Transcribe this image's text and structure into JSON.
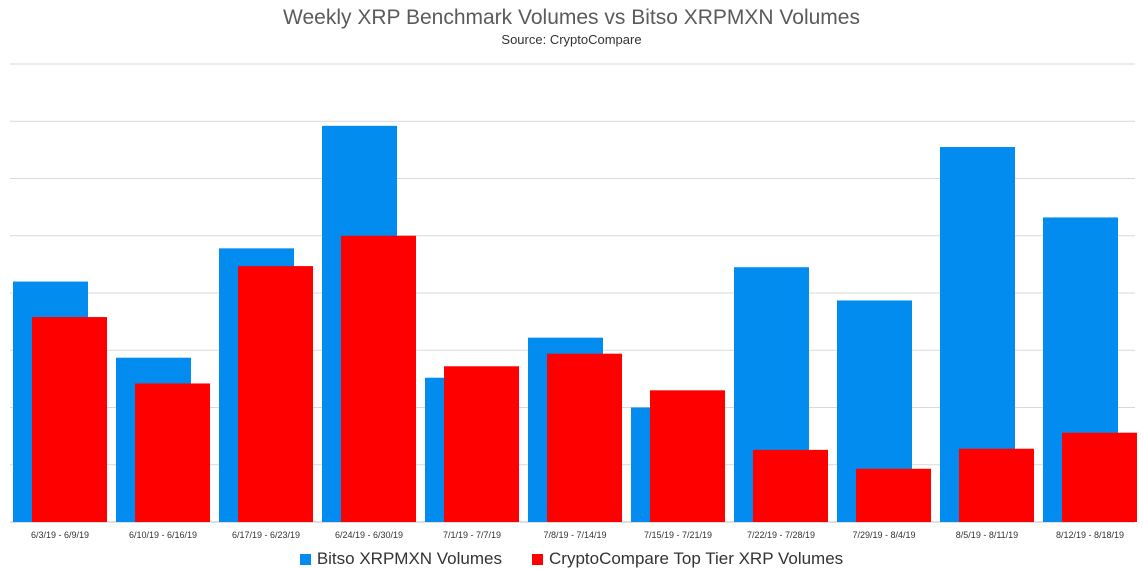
{
  "chart_data": {
    "type": "bar",
    "title": "Weekly XRP Benchmark Volumes vs Bitso XRPMXN Volumes",
    "subtitle": "Source: CryptoCompare",
    "xlabel": "",
    "ylabel": "",
    "categories": [
      "6/3/19 - 6/9/19",
      "6/10/19 - 6/16/19",
      "6/17/19 - 6/23/19",
      "6/24/19 - 6/30/19",
      "7/1/19 - 7/7/19",
      "7/8/19 - 7/14/19",
      "7/15/19 - 7/21/19",
      "7/22/19 - 7/28/19",
      "7/29/19 - 8/4/19",
      "8/5/19 - 8/11/19",
      "8/12/19 - 8/18/19"
    ],
    "series": [
      {
        "name": "Bitso XRPMXN Volumes",
        "color": "#038cef",
        "values": [
          4.2,
          2.87,
          4.78,
          6.92,
          2.52,
          3.22,
          2.0,
          4.45,
          3.87,
          6.55,
          5.32
        ]
      },
      {
        "name": "CryptoCompare Top Tier XRP Volumes",
        "color": "#ff0000",
        "values": [
          3.58,
          2.42,
          4.47,
          5.0,
          2.72,
          2.94,
          2.3,
          1.26,
          0.93,
          1.28,
          1.56
        ]
      }
    ],
    "ylim": [
      0,
      8
    ],
    "grid": true,
    "legend_position": "bottom"
  }
}
